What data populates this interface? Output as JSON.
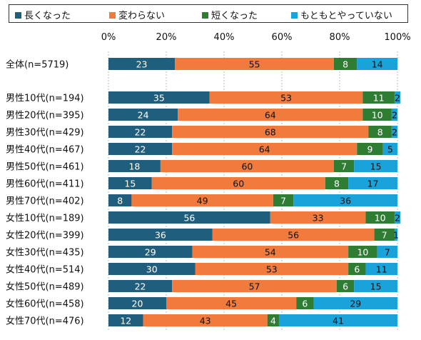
{
  "chart_data": {
    "type": "bar",
    "orientation": "horizontal",
    "stacked": "percent",
    "xlim": [
      0,
      100
    ],
    "x_ticks": [
      "0%",
      "20%",
      "40%",
      "60%",
      "80%",
      "100%"
    ],
    "grid": true,
    "legend_position": "top",
    "categories": [
      "全体(n=5719)",
      "男性10代(n=194)",
      "男性20代(n=395)",
      "男性30代(n=429)",
      "男性40代(n=467)",
      "男性50代(n=461)",
      "男性60代(n=411)",
      "男性70代(n=402)",
      "女性10代(n=189)",
      "女性20代(n=399)",
      "女性30代(n=435)",
      "女性40代(n=514)",
      "女性50代(n=489)",
      "女性60代(n=458)",
      "女性70代(n=476)"
    ],
    "series": [
      {
        "name": "長くなった",
        "color": "#1f5f7d",
        "label_color": "#ffffff",
        "values": [
          23,
          35,
          24,
          22,
          22,
          18,
          15,
          8,
          56,
          36,
          29,
          30,
          22,
          20,
          12
        ]
      },
      {
        "name": "変わらない",
        "color": "#f07b3c",
        "label_color": "#111111",
        "values": [
          55,
          53,
          64,
          68,
          64,
          60,
          60,
          49,
          33,
          56,
          54,
          53,
          57,
          45,
          43
        ]
      },
      {
        "name": "短くなった",
        "color": "#2e7d32",
        "label_color": "#ffffff",
        "values": [
          8,
          11,
          10,
          8,
          9,
          7,
          8,
          7,
          10,
          7,
          10,
          6,
          6,
          6,
          4
        ]
      },
      {
        "name": "もともとやっていない",
        "color": "#1aa3db",
        "label_color": "#111111",
        "values": [
          14,
          2,
          2,
          2,
          5,
          15,
          17,
          36,
          2,
          1,
          7,
          11,
          15,
          29,
          41
        ]
      }
    ]
  }
}
